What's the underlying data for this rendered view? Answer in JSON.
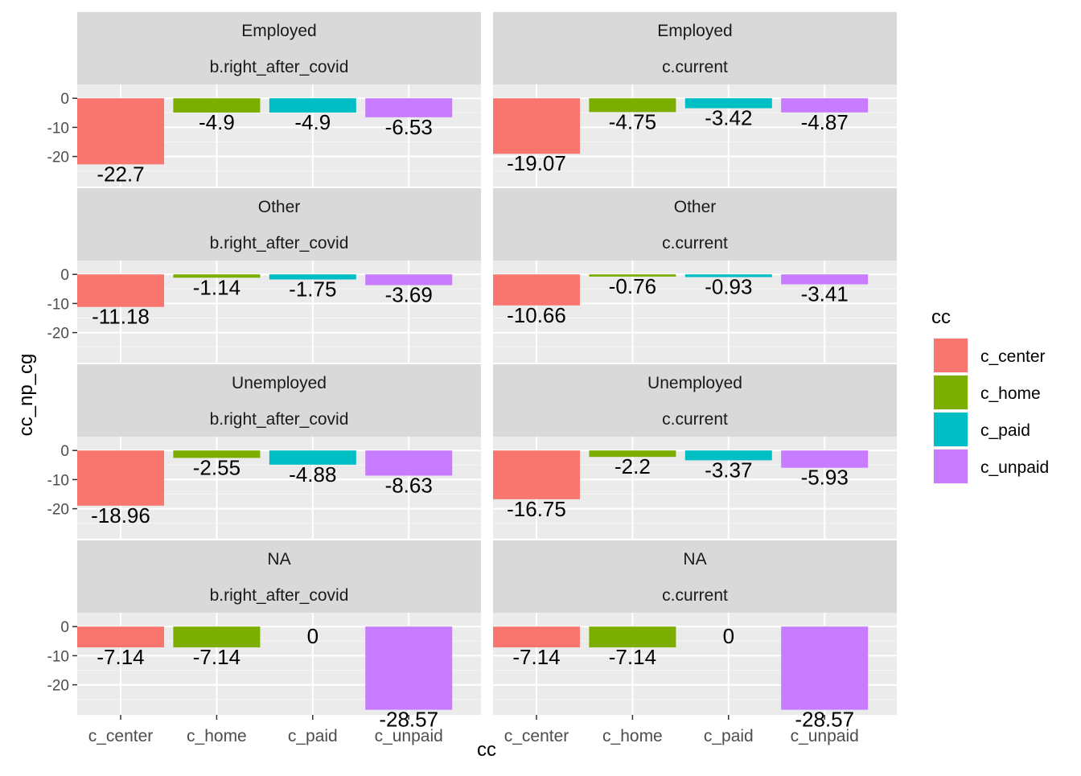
{
  "chart_data": {
    "type": "bar",
    "xlabel": "cc",
    "ylabel": "cc_np_cg",
    "yticks": [
      0,
      -10,
      -20
    ],
    "ylim": [
      -28.57,
      0
    ],
    "categories": [
      "c_center",
      "c_home",
      "c_paid",
      "c_unpaid"
    ],
    "legend": {
      "title": "cc",
      "position": "right",
      "items": [
        {
          "label": "c_center",
          "color": "#F8766D"
        },
        {
          "label": "c_home",
          "color": "#7CAE00"
        },
        {
          "label": "c_paid",
          "color": "#00BFC4"
        },
        {
          "label": "c_unpaid",
          "color": "#C77CFF"
        }
      ]
    },
    "panels": [
      {
        "row": 0,
        "col": 0,
        "group": "Employed",
        "period": "b.right_after_covid",
        "values": [
          -22.7,
          -4.9,
          -4.9,
          -6.53
        ],
        "labels": [
          "-22.7",
          "-4.9",
          "-4.9",
          "-6.53"
        ]
      },
      {
        "row": 0,
        "col": 1,
        "group": "Employed",
        "period": "c.current",
        "values": [
          -19.07,
          -4.75,
          -3.42,
          -4.87
        ],
        "labels": [
          "-19.07",
          "-4.75",
          "-3.42",
          "-4.87"
        ]
      },
      {
        "row": 1,
        "col": 0,
        "group": "Other",
        "period": "b.right_after_covid",
        "values": [
          -11.18,
          -1.14,
          -1.75,
          -3.69
        ],
        "labels": [
          "-11.18",
          "-1.14",
          "-1.75",
          "-3.69"
        ]
      },
      {
        "row": 1,
        "col": 1,
        "group": "Other",
        "period": "c.current",
        "values": [
          -10.66,
          -0.76,
          -0.93,
          -3.41
        ],
        "labels": [
          "-10.66",
          "-0.76",
          "-0.93",
          "-3.41"
        ]
      },
      {
        "row": 2,
        "col": 0,
        "group": "Unemployed",
        "period": "b.right_after_covid",
        "values": [
          -18.96,
          -2.55,
          -4.88,
          -8.63
        ],
        "labels": [
          "-18.96",
          "-2.55",
          "-4.88",
          "-8.63"
        ]
      },
      {
        "row": 2,
        "col": 1,
        "group": "Unemployed",
        "period": "c.current",
        "values": [
          -16.75,
          -2.2,
          -3.37,
          -5.93
        ],
        "labels": [
          "-16.75",
          "-2.2",
          "-3.37",
          "-5.93"
        ]
      },
      {
        "row": 3,
        "col": 0,
        "group": "NA",
        "period": "b.right_after_covid",
        "values": [
          -7.14,
          -7.14,
          0,
          -28.57
        ],
        "labels": [
          "-7.14",
          "-7.14",
          "0",
          "-28.57"
        ]
      },
      {
        "row": 3,
        "col": 1,
        "group": "NA",
        "period": "c.current",
        "values": [
          -7.14,
          -7.14,
          0,
          -28.57
        ],
        "labels": [
          "-7.14",
          "-7.14",
          "0",
          "-28.57"
        ]
      }
    ]
  }
}
